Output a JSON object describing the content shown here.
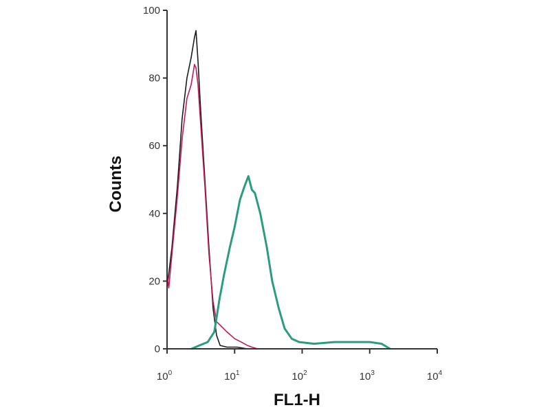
{
  "chart_data": {
    "type": "line",
    "title": "",
    "xlabel": "FL1-H",
    "ylabel": "Counts",
    "xscale": "log",
    "xlim": [
      1,
      10000
    ],
    "ylim": [
      0,
      100
    ],
    "grid": false,
    "x_ticks": [
      {
        "base": "10",
        "exp": "0"
      },
      {
        "base": "10",
        "exp": "1"
      },
      {
        "base": "10",
        "exp": "2"
      },
      {
        "base": "10",
        "exp": "3"
      },
      {
        "base": "10",
        "exp": "4"
      }
    ],
    "y_ticks": [
      "0",
      "20",
      "40",
      "60",
      "80",
      "100"
    ],
    "series": [
      {
        "color": "#1a1a1a",
        "points": [
          [
            1.0,
            18
          ],
          [
            1.18,
            30
          ],
          [
            1.42,
            48
          ],
          [
            1.67,
            68
          ],
          [
            1.97,
            80
          ],
          [
            2.27,
            86
          ],
          [
            2.55,
            92
          ],
          [
            2.68,
            94
          ],
          [
            2.87,
            85
          ],
          [
            3.15,
            70
          ],
          [
            3.63,
            50
          ],
          [
            4.17,
            30
          ],
          [
            4.8,
            12
          ],
          [
            5.4,
            4
          ],
          [
            6.1,
            1
          ],
          [
            7.7,
            0.5
          ],
          [
            10.9,
            0.5
          ],
          [
            15.5,
            0
          ]
        ]
      },
      {
        "color": "#c2185b",
        "points": [
          [
            1.0,
            22
          ],
          [
            1.06,
            18
          ],
          [
            1.18,
            28
          ],
          [
            1.42,
            45
          ],
          [
            1.67,
            62
          ],
          [
            1.97,
            74
          ],
          [
            2.27,
            78
          ],
          [
            2.55,
            84
          ],
          [
            2.68,
            83
          ],
          [
            2.87,
            78
          ],
          [
            3.15,
            66
          ],
          [
            3.63,
            48
          ],
          [
            4.17,
            28
          ],
          [
            4.8,
            14
          ],
          [
            5.4,
            8
          ],
          [
            6.1,
            7
          ],
          [
            7.7,
            5
          ],
          [
            10,
            3
          ],
          [
            12.5,
            2
          ],
          [
            15.5,
            1
          ],
          [
            18,
            0.5
          ],
          [
            22,
            0
          ]
        ]
      },
      {
        "color": "#2a9d7f",
        "points": [
          [
            2.3,
            0
          ],
          [
            3.0,
            1
          ],
          [
            4.0,
            2
          ],
          [
            5.0,
            5
          ],
          [
            6.0,
            15
          ],
          [
            7.0,
            22
          ],
          [
            8.5,
            30
          ],
          [
            10,
            36
          ],
          [
            12,
            44
          ],
          [
            14,
            48
          ],
          [
            16,
            51
          ],
          [
            18,
            47
          ],
          [
            20,
            46
          ],
          [
            24,
            40
          ],
          [
            30,
            30
          ],
          [
            36,
            20
          ],
          [
            45,
            12
          ],
          [
            55,
            6
          ],
          [
            70,
            3
          ],
          [
            90,
            2
          ],
          [
            150,
            1.5
          ],
          [
            300,
            2
          ],
          [
            600,
            2
          ],
          [
            1000,
            2
          ],
          [
            1500,
            1.5
          ],
          [
            2000,
            0
          ]
        ]
      }
    ]
  }
}
